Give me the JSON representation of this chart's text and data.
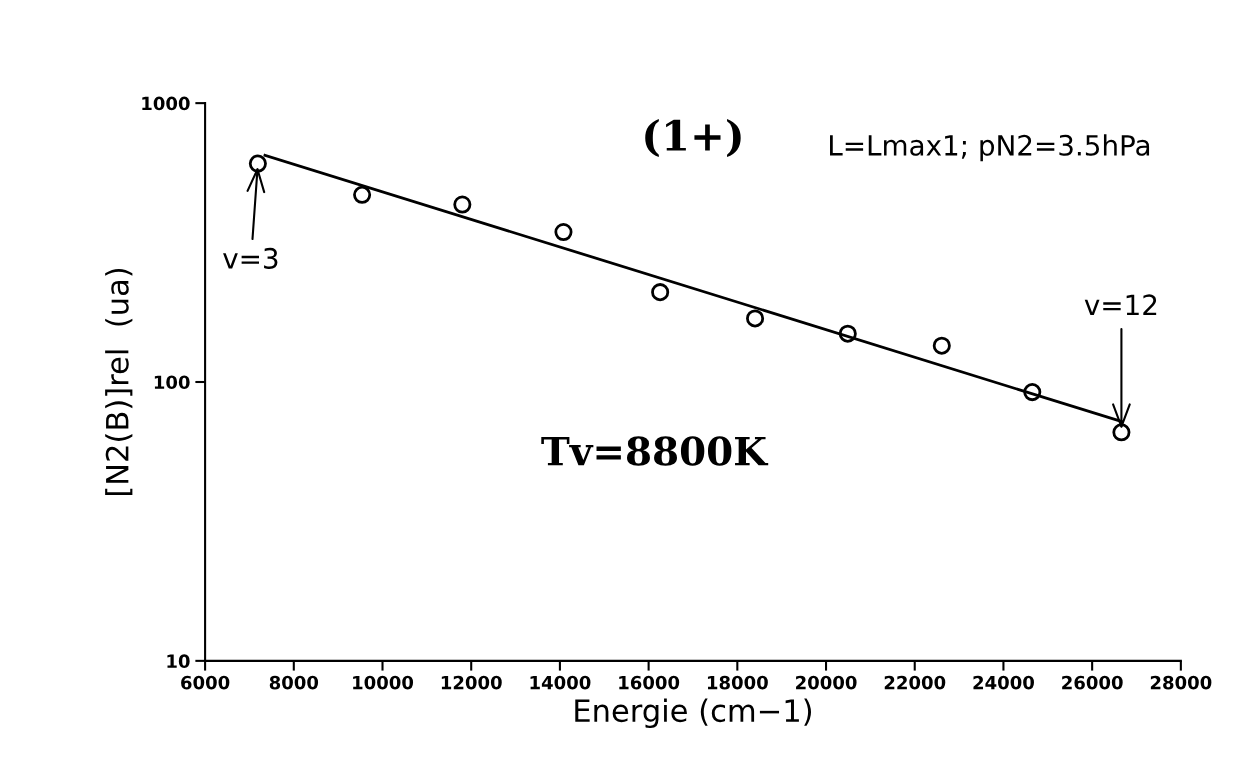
{
  "chart_data": {
    "type": "scatter",
    "title": "(1+)",
    "xlabel": "Energie (cm−1)",
    "ylabel": "[N2(B)]rel  (ua)",
    "log": "y",
    "xlim": [
      6000,
      28000
    ],
    "xticks": [
      6000,
      8000,
      10000,
      12000,
      14000,
      16000,
      18000,
      20000,
      22000,
      24000,
      26000,
      28000
    ],
    "ylim": [
      10,
      1000
    ],
    "yticks": [
      10,
      100,
      1000
    ],
    "grid": false,
    "legend": false,
    "series": [
      {
        "marker": "circle",
        "color": "#000000",
        "x": [
          7190,
          9540,
          11800,
          14080,
          16260,
          18400,
          20490,
          22610,
          24650,
          26660
        ],
        "values": [
          607,
          469,
          433,
          345,
          210,
          169,
          149,
          135,
          92,
          66
        ]
      },
      {
        "type": "line",
        "marker": "none",
        "line_style": "solid",
        "color": "#000000",
        "x": [
          7350,
          26680
        ],
        "values": [
          650,
          72
        ]
      }
    ],
    "annotations": [
      "L=Lmax1; pN2=3.5hPa",
      "Tv=8800K",
      {
        "text": "v=3",
        "x": 7190,
        "y": 607
      },
      {
        "text": "v=12",
        "x": 26660,
        "y": 66
      }
    ]
  }
}
